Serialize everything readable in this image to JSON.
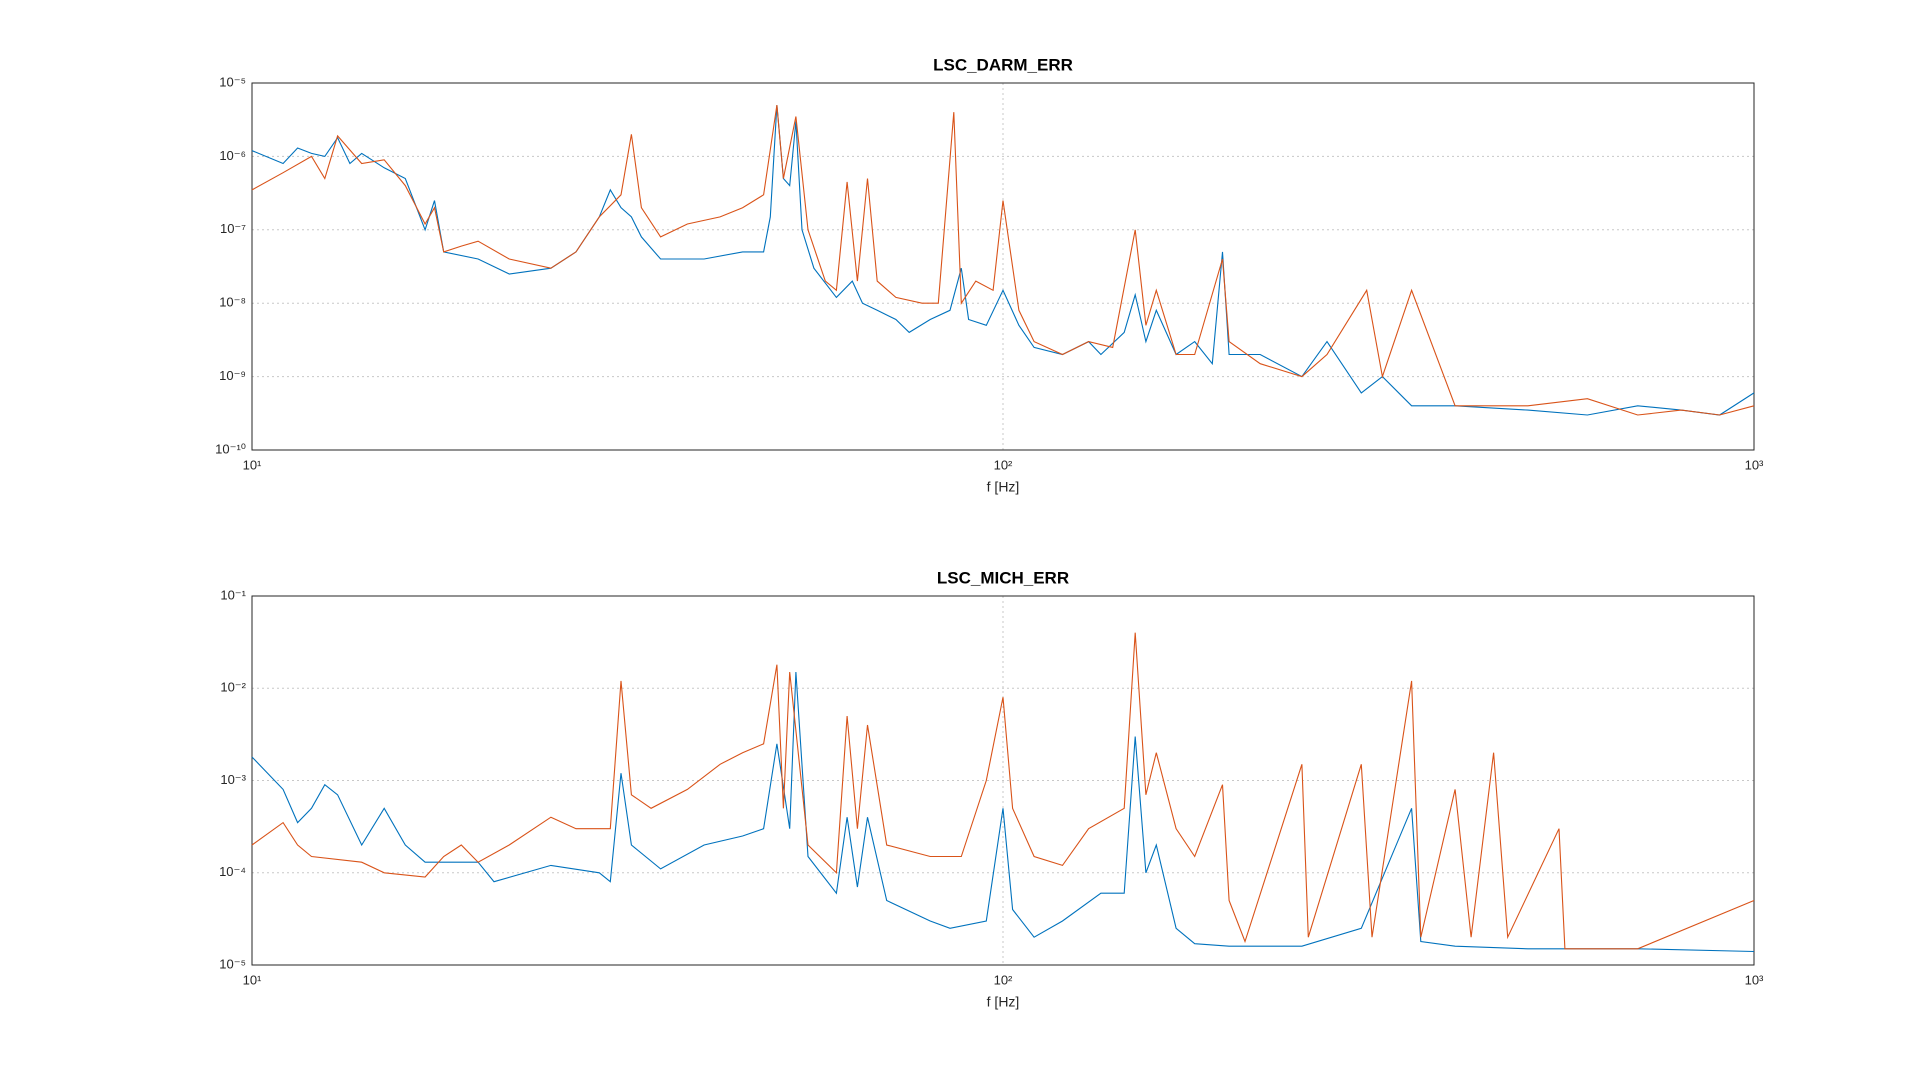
{
  "chart_data": [
    {
      "type": "line",
      "title": "LSC_DARM_ERR",
      "xlabel": "f [Hz]",
      "xscale": "log",
      "yscale": "log",
      "grid": true,
      "xlim": [
        10,
        1000
      ],
      "ylim": [
        1e-10,
        1e-05
      ],
      "xticks": [
        {
          "value": 10,
          "label": "10¹"
        },
        {
          "value": 100,
          "label": "10²"
        },
        {
          "value": 1000,
          "label": "10³"
        }
      ],
      "yticks": [
        {
          "value": 1e-10,
          "label": "10⁻¹⁰"
        },
        {
          "value": 1e-09,
          "label": "10⁻⁹"
        },
        {
          "value": 1e-08,
          "label": "10⁻⁸"
        },
        {
          "value": 1e-07,
          "label": "10⁻⁷"
        },
        {
          "value": 1e-06,
          "label": "10⁻⁶"
        },
        {
          "value": 1e-05,
          "label": "10⁻⁵"
        }
      ],
      "series": [
        {
          "color": "#0072bd",
          "x": [
            10,
            11,
            11.5,
            12,
            12.5,
            13,
            13.5,
            14,
            15,
            16,
            17,
            17.5,
            18,
            20,
            22,
            25,
            27,
            29,
            30,
            31,
            32,
            33,
            35,
            40,
            45,
            48,
            49,
            50,
            51,
            52,
            53,
            54,
            56,
            60,
            63,
            65,
            68,
            72,
            75,
            80,
            85,
            88,
            90,
            95,
            100,
            105,
            110,
            120,
            130,
            135,
            145,
            150,
            155,
            160,
            170,
            180,
            190,
            196,
            200,
            220,
            250,
            270,
            300,
            320,
            350,
            400,
            500,
            600,
            700,
            800,
            900,
            1000
          ],
          "values": [
            1.2e-06,
            8e-07,
            1.3e-06,
            1.1e-06,
            1e-06,
            1.8e-06,
            8e-07,
            1.1e-06,
            7e-07,
            5e-07,
            1e-07,
            2.5e-07,
            5e-08,
            4e-08,
            2.5e-08,
            3e-08,
            5e-08,
            1.5e-07,
            3.5e-07,
            2e-07,
            1.5e-07,
            8e-08,
            4e-08,
            4e-08,
            5e-08,
            5e-08,
            1.5e-07,
            5e-06,
            5e-07,
            4e-07,
            3e-06,
            1e-07,
            3e-08,
            1.2e-08,
            2e-08,
            1e-08,
            8e-09,
            6e-09,
            4e-09,
            6e-09,
            8e-09,
            3e-08,
            6e-09,
            5e-09,
            1.5e-08,
            5e-09,
            2.5e-09,
            2e-09,
            3e-09,
            2e-09,
            4e-09,
            1.3e-08,
            3e-09,
            8e-09,
            2e-09,
            3e-09,
            1.5e-09,
            5e-08,
            2e-09,
            2e-09,
            1e-09,
            3e-09,
            6e-10,
            1e-09,
            4e-10,
            4e-10,
            3.5e-10,
            3e-10,
            4e-10,
            3.5e-10,
            3e-10,
            6e-10
          ]
        },
        {
          "color": "#d95319",
          "x": [
            10,
            11,
            12,
            12.5,
            13,
            14,
            15,
            16,
            17,
            17.5,
            18,
            19,
            20,
            22,
            25,
            27,
            29,
            31,
            32,
            33,
            35,
            38,
            42,
            45,
            48,
            50,
            51,
            53,
            55,
            58,
            60,
            62,
            64,
            66,
            68,
            72,
            78,
            82,
            86,
            88,
            92,
            97,
            100,
            105,
            110,
            120,
            130,
            140,
            150,
            155,
            160,
            170,
            180,
            196,
            200,
            220,
            250,
            270,
            305,
            320,
            350,
            400,
            500,
            600,
            700,
            800,
            900,
            1000
          ],
          "values": [
            3.5e-07,
            6e-07,
            1e-06,
            5e-07,
            1.9e-06,
            8e-07,
            9e-07,
            4e-07,
            1.2e-07,
            2e-07,
            5e-08,
            6e-08,
            7e-08,
            4e-08,
            3e-08,
            5e-08,
            1.5e-07,
            3e-07,
            2e-06,
            2e-07,
            8e-08,
            1.2e-07,
            1.5e-07,
            2e-07,
            3e-07,
            5e-06,
            5e-07,
            3.5e-06,
            1e-07,
            2e-08,
            1.5e-08,
            4.5e-07,
            2e-08,
            5e-07,
            2e-08,
            1.2e-08,
            1e-08,
            1e-08,
            4e-06,
            1e-08,
            2e-08,
            1.5e-08,
            2.5e-07,
            8e-09,
            3e-09,
            2e-09,
            3e-09,
            2.5e-09,
            1e-07,
            5e-09,
            1.5e-08,
            2e-09,
            2e-09,
            4e-08,
            3e-09,
            1.5e-09,
            1e-09,
            2e-09,
            1.5e-08,
            1e-09,
            1.5e-08,
            4e-10,
            4e-10,
            5e-10,
            3e-10,
            3.5e-10,
            3e-10,
            4e-10
          ]
        }
      ]
    },
    {
      "type": "line",
      "title": "LSC_MICH_ERR",
      "xlabel": "f [Hz]",
      "xscale": "log",
      "yscale": "log",
      "grid": true,
      "xlim": [
        10,
        1000
      ],
      "ylim": [
        1e-05,
        0.1
      ],
      "xticks": [
        {
          "value": 10,
          "label": "10¹"
        },
        {
          "value": 100,
          "label": "10²"
        },
        {
          "value": 1000,
          "label": "10³"
        }
      ],
      "yticks": [
        {
          "value": 1e-05,
          "label": "10⁻⁵"
        },
        {
          "value": 0.0001,
          "label": "10⁻⁴"
        },
        {
          "value": 0.001,
          "label": "10⁻³"
        },
        {
          "value": 0.01,
          "label": "10⁻²"
        },
        {
          "value": 0.1,
          "label": "10⁻¹"
        }
      ],
      "series": [
        {
          "color": "#0072bd",
          "x": [
            10,
            11,
            11.5,
            12,
            12.5,
            13,
            14,
            15,
            16,
            17,
            20,
            21,
            25,
            29,
            30,
            31,
            32,
            35,
            40,
            45,
            48,
            50,
            52,
            53,
            55,
            60,
            62,
            64,
            66,
            70,
            80,
            85,
            95,
            100,
            103,
            110,
            120,
            135,
            145,
            150,
            155,
            160,
            170,
            180,
            200,
            250,
            300,
            350,
            360,
            400,
            500,
            700,
            1000
          ],
          "values": [
            0.0018,
            0.0008,
            0.00035,
            0.0005,
            0.0009,
            0.0007,
            0.0002,
            0.0005,
            0.0002,
            0.00013,
            0.00013,
            8e-05,
            0.00012,
            0.0001,
            8e-05,
            0.0012,
            0.0002,
            0.00011,
            0.0002,
            0.00025,
            0.0003,
            0.0025,
            0.0003,
            0.015,
            0.00015,
            6e-05,
            0.0004,
            7e-05,
            0.0004,
            5e-05,
            3e-05,
            2.5e-05,
            3e-05,
            0.0005,
            4e-05,
            2e-05,
            3e-05,
            6e-05,
            6e-05,
            0.003,
            0.0001,
            0.0002,
            2.5e-05,
            1.7e-05,
            1.6e-05,
            1.6e-05,
            2.5e-05,
            0.0005,
            1.8e-05,
            1.6e-05,
            1.5e-05,
            1.5e-05,
            1.4e-05
          ]
        },
        {
          "color": "#d95319",
          "x": [
            10,
            11,
            11.5,
            12,
            14,
            15,
            17,
            18,
            19,
            20,
            22,
            25,
            27,
            30,
            31,
            32,
            34,
            38,
            42,
            45,
            48,
            50,
            51,
            52,
            55,
            60,
            62,
            64,
            66,
            70,
            80,
            88,
            95,
            100,
            103,
            110,
            120,
            130,
            145,
            150,
            155,
            160,
            170,
            180,
            196,
            200,
            210,
            250,
            255,
            300,
            310,
            350,
            360,
            400,
            420,
            450,
            470,
            550,
            560,
            700,
            1000
          ],
          "values": [
            0.0002,
            0.00035,
            0.0002,
            0.00015,
            0.00013,
            0.0001,
            9e-05,
            0.00015,
            0.0002,
            0.00013,
            0.0002,
            0.0004,
            0.0003,
            0.0003,
            0.012,
            0.0007,
            0.0005,
            0.0008,
            0.0015,
            0.002,
            0.0025,
            0.018,
            0.0005,
            0.015,
            0.0002,
            0.0001,
            0.005,
            0.0003,
            0.004,
            0.0002,
            0.00015,
            0.00015,
            0.001,
            0.008,
            0.0005,
            0.00015,
            0.00012,
            0.0003,
            0.0005,
            0.04,
            0.0007,
            0.002,
            0.0003,
            0.00015,
            0.0009,
            5e-05,
            1.8e-05,
            0.0015,
            2e-05,
            0.0015,
            2e-05,
            0.012,
            2e-05,
            0.0008,
            2e-05,
            0.002,
            2e-05,
            0.0003,
            1.5e-05,
            1.5e-05,
            5e-05
          ]
        }
      ]
    }
  ]
}
